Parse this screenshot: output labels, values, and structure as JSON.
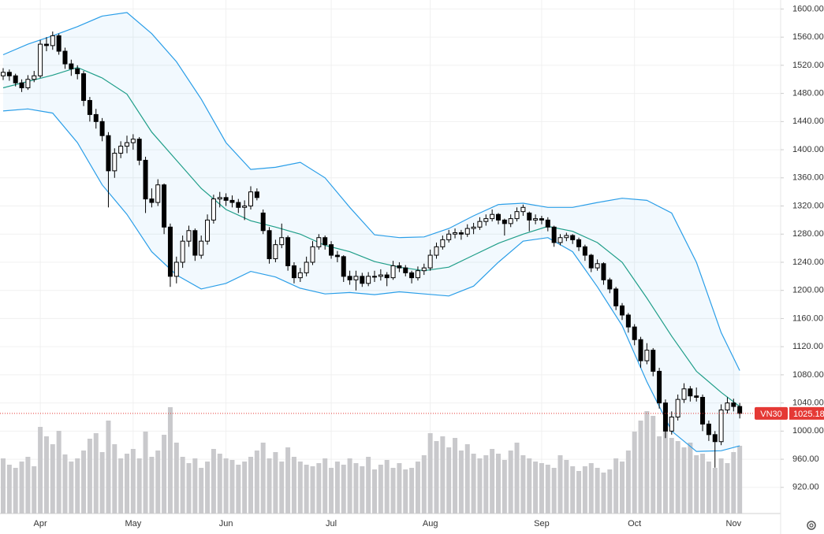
{
  "chart_data": {
    "type": "candlestick",
    "symbol": "VN30",
    "categories": [
      null,
      null,
      null,
      null,
      null,
      null,
      "Apr",
      null,
      null,
      null,
      null,
      null,
      null,
      null,
      null,
      null,
      null,
      null,
      null,
      null,
      null,
      "May",
      null,
      null,
      null,
      null,
      null,
      null,
      null,
      null,
      null,
      null,
      null,
      null,
      null,
      null,
      "Jun",
      null,
      null,
      null,
      null,
      null,
      null,
      null,
      null,
      null,
      null,
      null,
      null,
      null,
      null,
      null,
      null,
      "Jul",
      null,
      null,
      null,
      null,
      null,
      null,
      null,
      null,
      null,
      null,
      null,
      null,
      null,
      null,
      null,
      "Aug",
      null,
      null,
      null,
      null,
      null,
      null,
      null,
      null,
      null,
      null,
      null,
      null,
      null,
      null,
      null,
      null,
      null,
      "Sep",
      null,
      null,
      null,
      null,
      null,
      null,
      null,
      null,
      null,
      null,
      null,
      null,
      null,
      null,
      "Oct",
      null,
      null,
      null,
      null,
      null,
      null,
      null,
      null,
      null,
      null,
      null,
      null,
      null,
      null,
      null,
      "Nov",
      null
    ],
    "ohlc": [
      [
        1505,
        1516,
        1499,
        1510
      ],
      [
        1510,
        1514,
        1498,
        1505
      ],
      [
        1505,
        1508,
        1490,
        1495
      ],
      [
        1495,
        1500,
        1482,
        1488
      ],
      [
        1488,
        1506,
        1485,
        1500
      ],
      [
        1500,
        1512,
        1496,
        1505
      ],
      [
        1505,
        1556,
        1502,
        1550
      ],
      [
        1550,
        1560,
        1540,
        1548
      ],
      [
        1548,
        1568,
        1542,
        1562
      ],
      [
        1562,
        1565,
        1535,
        1540
      ],
      [
        1540,
        1545,
        1515,
        1522
      ],
      [
        1522,
        1528,
        1505,
        1515
      ],
      [
        1515,
        1520,
        1500,
        1508
      ],
      [
        1508,
        1512,
        1462,
        1470
      ],
      [
        1470,
        1475,
        1440,
        1450
      ],
      [
        1450,
        1458,
        1430,
        1440
      ],
      [
        1440,
        1445,
        1412,
        1420
      ],
      [
        1420,
        1425,
        1318,
        1370
      ],
      [
        1370,
        1402,
        1360,
        1395
      ],
      [
        1395,
        1412,
        1388,
        1405
      ],
      [
        1405,
        1420,
        1395,
        1410
      ],
      [
        1410,
        1422,
        1400,
        1415
      ],
      [
        1415,
        1418,
        1378,
        1385
      ],
      [
        1385,
        1390,
        1310,
        1330
      ],
      [
        1330,
        1345,
        1318,
        1325
      ],
      [
        1325,
        1358,
        1320,
        1350
      ],
      [
        1350,
        1352,
        1280,
        1290
      ],
      [
        1290,
        1295,
        1205,
        1220
      ],
      [
        1220,
        1248,
        1210,
        1240
      ],
      [
        1240,
        1278,
        1232,
        1270
      ],
      [
        1270,
        1292,
        1262,
        1285
      ],
      [
        1285,
        1288,
        1242,
        1250
      ],
      [
        1250,
        1278,
        1245,
        1270
      ],
      [
        1270,
        1308,
        1265,
        1300
      ],
      [
        1300,
        1336,
        1295,
        1330
      ],
      [
        1330,
        1340,
        1318,
        1332
      ],
      [
        1332,
        1338,
        1320,
        1328
      ],
      [
        1328,
        1335,
        1318,
        1325
      ],
      [
        1325,
        1330,
        1310,
        1318
      ],
      [
        1318,
        1328,
        1300,
        1320
      ],
      [
        1320,
        1348,
        1315,
        1340
      ],
      [
        1340,
        1345,
        1328,
        1332
      ],
      [
        1310,
        1315,
        1280,
        1285
      ],
      [
        1285,
        1290,
        1238,
        1245
      ],
      [
        1245,
        1272,
        1240,
        1265
      ],
      [
        1265,
        1295,
        1260,
        1275
      ],
      [
        1275,
        1278,
        1228,
        1235
      ],
      [
        1235,
        1240,
        1210,
        1218
      ],
      [
        1218,
        1232,
        1212,
        1225
      ],
      [
        1225,
        1248,
        1220,
        1240
      ],
      [
        1240,
        1270,
        1236,
        1262
      ],
      [
        1262,
        1280,
        1258,
        1275
      ],
      [
        1275,
        1278,
        1258,
        1265
      ],
      [
        1265,
        1270,
        1245,
        1250
      ],
      [
        1250,
        1256,
        1240,
        1248
      ],
      [
        1248,
        1250,
        1212,
        1220
      ],
      [
        1220,
        1228,
        1208,
        1215
      ],
      [
        1215,
        1228,
        1200,
        1220
      ],
      [
        1220,
        1225,
        1205,
        1210
      ],
      [
        1210,
        1226,
        1206,
        1220
      ],
      [
        1220,
        1228,
        1212,
        1220
      ],
      [
        1220,
        1230,
        1214,
        1222
      ],
      [
        1222,
        1226,
        1206,
        1218
      ],
      [
        1218,
        1242,
        1215,
        1235
      ],
      [
        1235,
        1240,
        1226,
        1232
      ],
      [
        1232,
        1236,
        1220,
        1225
      ],
      [
        1225,
        1228,
        1210,
        1218
      ],
      [
        1218,
        1234,
        1214,
        1228
      ],
      [
        1228,
        1238,
        1222,
        1232
      ],
      [
        1232,
        1258,
        1228,
        1250
      ],
      [
        1250,
        1268,
        1245,
        1262
      ],
      [
        1262,
        1278,
        1258,
        1272
      ],
      [
        1272,
        1286,
        1268,
        1280
      ],
      [
        1280,
        1288,
        1274,
        1282
      ],
      [
        1282,
        1286,
        1272,
        1280
      ],
      [
        1280,
        1294,
        1276,
        1288
      ],
      [
        1288,
        1296,
        1280,
        1290
      ],
      [
        1290,
        1304,
        1286,
        1298
      ],
      [
        1298,
        1308,
        1292,
        1302
      ],
      [
        1302,
        1315,
        1298,
        1308
      ],
      [
        1308,
        1310,
        1294,
        1300
      ],
      [
        1300,
        1302,
        1278,
        1295
      ],
      [
        1295,
        1308,
        1290,
        1302
      ],
      [
        1302,
        1318,
        1298,
        1312
      ],
      [
        1312,
        1322,
        1306,
        1318
      ],
      [
        1310,
        1312,
        1284,
        1300
      ],
      [
        1300,
        1308,
        1294,
        1302
      ],
      [
        1302,
        1306,
        1294,
        1300
      ],
      [
        1300,
        1304,
        1284,
        1290
      ],
      [
        1290,
        1292,
        1262,
        1268
      ],
      [
        1268,
        1280,
        1264,
        1275
      ],
      [
        1275,
        1282,
        1270,
        1278
      ],
      [
        1278,
        1280,
        1266,
        1272
      ],
      [
        1272,
        1275,
        1256,
        1262
      ],
      [
        1262,
        1265,
        1242,
        1250
      ],
      [
        1250,
        1252,
        1226,
        1232
      ],
      [
        1232,
        1244,
        1228,
        1238
      ],
      [
        1238,
        1240,
        1208,
        1215
      ],
      [
        1215,
        1218,
        1196,
        1202
      ],
      [
        1202,
        1205,
        1172,
        1178
      ],
      [
        1178,
        1182,
        1158,
        1165
      ],
      [
        1165,
        1168,
        1140,
        1148
      ],
      [
        1148,
        1152,
        1122,
        1130
      ],
      [
        1130,
        1134,
        1090,
        1100
      ],
      [
        1100,
        1125,
        1095,
        1115
      ],
      [
        1115,
        1118,
        1078,
        1085
      ],
      [
        1085,
        1090,
        1032,
        1040
      ],
      [
        1040,
        1045,
        990,
        1000
      ],
      [
        1000,
        1028,
        995,
        1020
      ],
      [
        1020,
        1052,
        1015,
        1045
      ],
      [
        1045,
        1068,
        1040,
        1060
      ],
      [
        1060,
        1064,
        1042,
        1050
      ],
      [
        1050,
        1062,
        1042,
        1048
      ],
      [
        1048,
        1052,
        1000,
        1010
      ],
      [
        1010,
        1015,
        986,
        995
      ],
      [
        995,
        1000,
        948,
        985
      ],
      [
        985,
        1038,
        980,
        1030
      ],
      [
        1030,
        1048,
        1025,
        1040
      ],
      [
        1040,
        1046,
        1028,
        1035
      ],
      [
        1035,
        1040,
        1018,
        1025.18
      ]
    ],
    "volume": [
      70,
      62,
      58,
      66,
      72,
      60,
      110,
      98,
      88,
      105,
      75,
      66,
      70,
      80,
      95,
      102,
      78,
      118,
      88,
      70,
      76,
      82,
      70,
      104,
      72,
      80,
      100,
      135,
      90,
      72,
      64,
      70,
      58,
      66,
      82,
      76,
      70,
      68,
      62,
      66,
      72,
      80,
      90,
      70,
      78,
      66,
      84,
      72,
      66,
      62,
      60,
      64,
      70,
      58,
      66,
      62,
      70,
      64,
      60,
      72,
      56,
      62,
      68,
      58,
      64,
      56,
      58,
      66,
      74,
      102,
      92,
      98,
      84,
      96,
      80,
      88,
      76,
      70,
      74,
      82,
      76,
      68,
      80,
      90,
      74,
      70,
      66,
      64,
      62,
      58,
      74,
      68,
      60,
      54,
      60,
      64,
      58,
      52,
      56,
      70,
      66,
      80,
      104,
      118,
      130,
      124,
      98,
      110,
      96,
      92,
      84,
      90,
      74,
      76,
      66,
      58,
      70,
      64,
      78,
      86
    ],
    "volume_lim": [
      0,
      150
    ],
    "bands": {
      "x": [
        0,
        4,
        8,
        12,
        16,
        20,
        24,
        28,
        32,
        36,
        40,
        44,
        48,
        52,
        56,
        60,
        64,
        68,
        72,
        76,
        80,
        84,
        88,
        92,
        96,
        100,
        104,
        108,
        112,
        116,
        119
      ],
      "upper": [
        1535,
        1550,
        1562,
        1575,
        1590,
        1595,
        1565,
        1525,
        1472,
        1410,
        1372,
        1375,
        1382,
        1360,
        1318,
        1279,
        1275,
        1276,
        1288,
        1306,
        1322,
        1324,
        1318,
        1318,
        1325,
        1331,
        1328,
        1310,
        1240,
        1140,
        1086
      ],
      "middle": [
        1488,
        1497,
        1506,
        1517,
        1502,
        1479,
        1425,
        1385,
        1345,
        1315,
        1299,
        1290,
        1280,
        1264,
        1255,
        1241,
        1233,
        1228,
        1233,
        1250,
        1267,
        1280,
        1291,
        1284,
        1268,
        1240,
        1189,
        1135,
        1085,
        1055,
        1035
      ],
      "lower": [
        1455,
        1458,
        1452,
        1410,
        1350,
        1308,
        1255,
        1222,
        1202,
        1210,
        1227,
        1219,
        1203,
        1195,
        1197,
        1194,
        1198,
        1195,
        1192,
        1206,
        1240,
        1270,
        1275,
        1255,
        1205,
        1150,
        1070,
        1000,
        971,
        972,
        979
      ]
    },
    "ylim": [
      903.2,
      1612.8
    ],
    "yticks": [
      {
        "value": 920,
        "label": "920.00"
      },
      {
        "value": 960,
        "label": "960.00"
      },
      {
        "value": 1000,
        "label": "1000.00"
      },
      {
        "value": 1040,
        "label": "1040.00"
      },
      {
        "value": 1080,
        "label": "1080.00"
      },
      {
        "value": 1120,
        "label": "1120.00"
      },
      {
        "value": 1160,
        "label": "1160.00"
      },
      {
        "value": 1200,
        "label": "1200.00"
      },
      {
        "value": 1240,
        "label": "1240.00"
      },
      {
        "value": 1280,
        "label": "1280.00"
      },
      {
        "value": 1320,
        "label": "1320.00"
      },
      {
        "value": 1360,
        "label": "1360.00"
      },
      {
        "value": 1400,
        "label": "1400.00"
      },
      {
        "value": 1440,
        "label": "1440.00"
      },
      {
        "value": 1480,
        "label": "1480.00"
      },
      {
        "value": 1520,
        "label": "1520.00"
      },
      {
        "value": 1560,
        "label": "1560.00"
      },
      {
        "value": 1600,
        "label": "1600.00"
      }
    ],
    "grid": true,
    "up_color": "#ffffff",
    "down_color": "#000000",
    "wick_color": "#000000",
    "volume_color": "#c9c9cc",
    "band_color": "#2a9ee8",
    "middle_color": "#1f9e89",
    "last_color": "#e53935"
  }
}
